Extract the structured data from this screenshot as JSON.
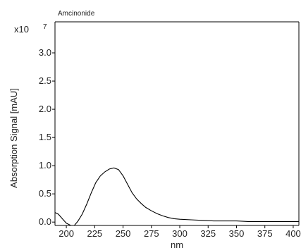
{
  "chart_data": {
    "type": "line",
    "title": "Amcinonide",
    "ylabel": "Absorption Signal [mAU]",
    "xlabel": "nm",
    "y_multiplier_label": "x10",
    "y_multiplier_exponent": "7",
    "xlim": [
      190,
      405
    ],
    "ylim": [
      -0.06,
      3.55
    ],
    "x_ticks": [
      200,
      225,
      250,
      275,
      300,
      325,
      350,
      375,
      400
    ],
    "y_ticks": [
      0.0,
      0.5,
      1.0,
      1.5,
      2.0,
      2.5,
      3.0
    ],
    "y_tick_labels": [
      "0.0",
      "0.5",
      "1.0",
      "1.5",
      "2.0",
      "2.5",
      "3.0"
    ],
    "grid": false,
    "line_color": "#000000",
    "series": [
      {
        "x": [
          190,
          193,
          196,
          200,
          204,
          207,
          210,
          214,
          218,
          222,
          226,
          230,
          234,
          238,
          242,
          246,
          250,
          254,
          258,
          262,
          266,
          270,
          275,
          280,
          285,
          290,
          295,
          300,
          310,
          320,
          330,
          340,
          350,
          360,
          370,
          380,
          390,
          400,
          405
        ],
        "y": [
          0.17,
          0.14,
          0.07,
          -0.02,
          -0.08,
          -0.07,
          0.01,
          0.14,
          0.32,
          0.52,
          0.7,
          0.82,
          0.89,
          0.94,
          0.96,
          0.93,
          0.82,
          0.67,
          0.52,
          0.41,
          0.33,
          0.26,
          0.2,
          0.15,
          0.11,
          0.08,
          0.06,
          0.05,
          0.04,
          0.03,
          0.02,
          0.02,
          0.02,
          0.01,
          0.01,
          0.01,
          0.01,
          0.01,
          0.01
        ]
      }
    ]
  }
}
